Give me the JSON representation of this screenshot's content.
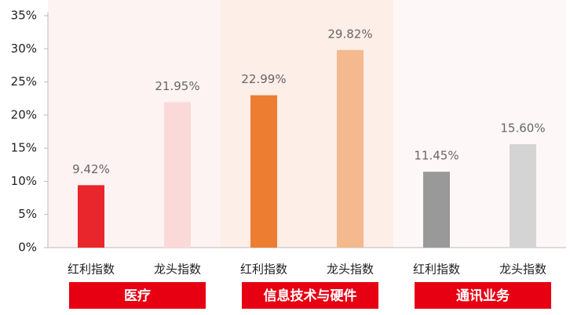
{
  "chart_data": {
    "type": "bar",
    "categories": [
      "红利指数",
      "龙头指数",
      "红利指数",
      "龙头指数",
      "红利指数",
      "龙头指数"
    ],
    "values": [
      9.42,
      21.95,
      22.99,
      29.82,
      11.45,
      15.6
    ],
    "value_labels": [
      "9.42%",
      "21.95%",
      "22.99%",
      "29.82%",
      "11.45%",
      "15.60%"
    ],
    "colors": [
      "#e8262b",
      "#fbd9d9",
      "#ed7d31",
      "#f4b98e",
      "#999999",
      "#d4d4d4"
    ],
    "groups": [
      "医疗",
      "信息技术与硬件",
      "通讯业务"
    ],
    "group_color": "#e60012",
    "group_backgrounds": [
      "#fdf3f2",
      "#fdeee7",
      "#fdf8f7"
    ],
    "ylim": [
      0,
      35
    ],
    "yticks": [
      {
        "value": 0,
        "label": "0%"
      },
      {
        "value": 5,
        "label": "5%"
      },
      {
        "value": 10,
        "label": "10%"
      },
      {
        "value": 15,
        "label": "15%"
      },
      {
        "value": 20,
        "label": "20%"
      },
      {
        "value": 25,
        "label": "25%"
      },
      {
        "value": 30,
        "label": "30%"
      },
      {
        "value": 35,
        "label": "35%"
      }
    ]
  }
}
